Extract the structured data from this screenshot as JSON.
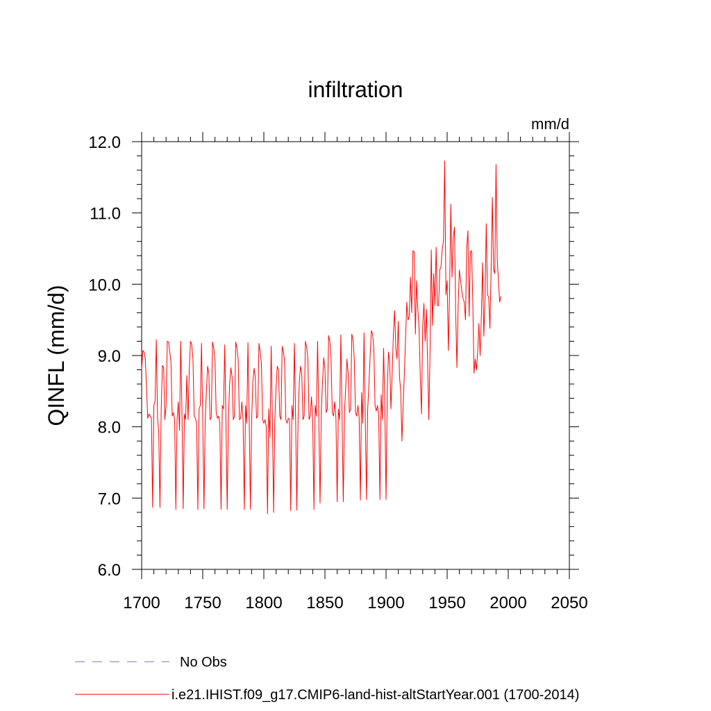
{
  "chart_data": {
    "type": "line",
    "title": "infiltration",
    "units_label": "mm/d",
    "ylabel": "QINFL  (mm/d)",
    "xlabel": "",
    "xlim": [
      1700,
      2050
    ],
    "ylim": [
      6.0,
      12.0
    ],
    "x_ticks": [
      1700,
      1750,
      1800,
      1850,
      1900,
      1950,
      2000,
      2050
    ],
    "x_tick_labels": [
      "1700",
      "1750",
      "1800",
      "1850",
      "1900",
      "1950",
      "2000",
      "2050"
    ],
    "y_ticks": [
      6.0,
      7.0,
      8.0,
      9.0,
      10.0,
      11.0,
      12.0
    ],
    "y_tick_labels": [
      "6.0",
      "7.0",
      "8.0",
      "9.0",
      "10.0",
      "11.0",
      "12.0"
    ],
    "grid": false,
    "legend_position": "bottom-left",
    "legend": [
      {
        "label": "No Obs",
        "color": "#7a6fbf",
        "dashed": true
      },
      {
        "label": "i.e21.IHIST.f09_g17.CMIP6-land-hist-altStartYear.001 (1700-2014)",
        "color": "#ff0000",
        "dashed": false
      }
    ],
    "series": [
      {
        "color": "#ff0000",
        "x_start": 1700,
        "x_step": 1,
        "values": [
          8.8,
          9.07,
          9.05,
          8.95,
          8.55,
          8.12,
          8.18,
          8.15,
          8.12,
          6.87,
          8.3,
          8.36,
          9.22,
          8.12,
          7.92,
          6.87,
          8.25,
          8.86,
          8.83,
          8.1,
          8.3,
          9.2,
          9.19,
          9.05,
          8.9,
          8.15,
          8.2,
          8.1,
          6.84,
          8.1,
          8.35,
          7.95,
          9.2,
          8.18,
          6.85,
          8.18,
          8.1,
          8.72,
          8.1,
          8.82,
          9.2,
          9.15,
          8.95,
          8.15,
          8.12,
          8.05,
          6.84,
          8.25,
          8.3,
          9.17,
          8.12,
          6.85,
          8.1,
          8.5,
          8.85,
          8.75,
          8.1,
          8.13,
          9.19,
          9.1,
          8.95,
          8.2,
          8.12,
          8.15,
          8.05,
          6.84,
          8.3,
          8.25,
          9.15,
          8.1,
          6.84,
          8.1,
          8.6,
          8.83,
          8.7,
          8.1,
          8.15,
          9.19,
          9.1,
          8.95,
          8.1,
          8.12,
          8.35,
          8.1,
          6.84,
          8.3,
          8.05,
          9.18,
          8.12,
          6.84,
          8.1,
          8.62,
          8.82,
          8.7,
          8.12,
          8.15,
          9.17,
          9.05,
          8.9,
          8.1,
          8.05,
          8.1,
          8.0,
          6.78,
          8.25,
          7.85,
          9.13,
          8.1,
          6.8,
          8.1,
          8.55,
          8.85,
          8.8,
          8.15,
          8.1,
          9.13,
          9.05,
          8.92,
          8.1,
          8.05,
          8.12,
          8.1,
          6.82,
          8.3,
          8.1,
          9.17,
          8.12,
          6.83,
          8.1,
          8.62,
          8.85,
          8.75,
          8.1,
          8.15,
          9.2,
          9.12,
          8.97,
          8.1,
          8.15,
          8.42,
          8.1,
          6.84,
          8.3,
          8.15,
          9.2,
          8.1,
          6.93,
          8.2,
          8.62,
          8.97,
          8.8,
          8.2,
          8.25,
          9.28,
          9.2,
          8.95,
          8.2,
          8.15,
          8.35,
          8.12,
          6.95,
          8.25,
          8.1,
          9.29,
          8.15,
          6.95,
          8.2,
          8.55,
          8.95,
          8.75,
          8.2,
          8.25,
          9.3,
          9.22,
          8.95,
          8.2,
          8.15,
          8.3,
          8.12,
          6.97,
          8.48,
          8.05,
          9.32,
          8.12,
          6.98,
          8.25,
          8.6,
          9.0,
          9.35,
          9.3,
          9.1,
          8.3,
          8.22,
          8.3,
          8.15,
          6.98,
          8.45,
          8.1,
          9.1,
          8.3,
          6.98,
          8.5,
          9.05,
          8.9,
          8.25,
          8.75,
          9.3,
          9.63,
          9.1,
          8.95,
          9.48,
          8.7,
          8.5,
          7.8,
          8.3,
          8.75,
          9.25,
          9.75,
          9.5,
          9.55,
          10.1,
          9.6,
          10.47,
          10.45,
          9.3,
          10.05,
          9.65,
          9.4,
          8.7,
          8.18,
          9.4,
          9.73,
          9.2,
          9.65,
          8.9,
          8.1,
          9.05,
          10.48,
          9.42,
          10.15,
          9.7,
          10.52,
          9.7,
          9.7,
          10.2,
          10.25,
          10.5,
          10.6,
          11.73,
          9.85,
          10.05,
          9.07,
          9.9,
          11.12,
          10.1,
          10.65,
          10.8,
          9.6,
          8.83,
          9.7,
          10.2,
          10.05,
          9.9,
          9.8,
          9.75,
          9.5,
          10.5,
          10.75,
          9.55,
          10.45,
          10.47,
          9.75,
          8.75,
          8.95,
          8.8,
          9.05,
          9.45,
          9.0,
          9.55,
          10.3,
          9.27,
          9.8,
          10.85,
          9.85,
          9.82,
          9.38,
          10.2,
          11.22,
          10.2,
          10.15,
          11.68,
          10.35,
          10.05,
          9.75,
          9.83
        ]
      }
    ]
  }
}
